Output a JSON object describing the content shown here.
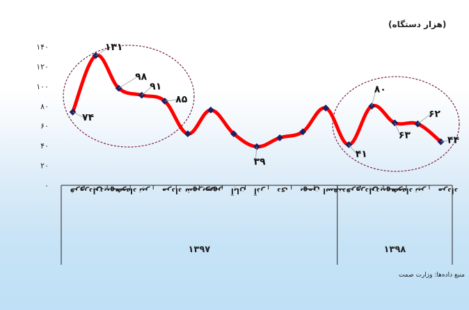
{
  "unit_label": "(هزار دستگاه)",
  "source_label": "منبع داده‌ها: وزارت صمت",
  "colors": {
    "line": "#ff0000",
    "marker": "#1f1f5f",
    "axis": "#222222",
    "circle": "#7a2048"
  },
  "chart_data": {
    "type": "line",
    "title": "",
    "xlabel": "",
    "ylabel": "(هزار دستگاه)",
    "ylim": [
      0,
      140
    ],
    "y_ticks": [
      "۰",
      "۲۰",
      "۴۰",
      "۶۰",
      "۸۰",
      "۱۰۰",
      "۱۲۰",
      "۱۴۰"
    ],
    "categories": [
      "فروردین",
      "اردیبهشت",
      "خرداد",
      "تیر",
      "مرداد",
      "شهریور",
      "مهر",
      "آبان",
      "آذر",
      "دی",
      "بهمن",
      "اسفند",
      "فروردین",
      "اردیبهشت",
      "خرداد",
      "تیر",
      "مرداد"
    ],
    "groups": [
      {
        "label": "۱۳۹۷",
        "count": 12
      },
      {
        "label": "۱۳۹۸",
        "count": 5
      }
    ],
    "series": [
      {
        "values": [
          74,
          131,
          98,
          91,
          85,
          52,
          76,
          52,
          39,
          48,
          54,
          78,
          41,
          80,
          63,
          62,
          44
        ]
      }
    ],
    "data_labels": [
      {
        "index": 0,
        "text": "۷۴"
      },
      {
        "index": 1,
        "text": "۱۳۱"
      },
      {
        "index": 2,
        "text": "۹۸"
      },
      {
        "index": 3,
        "text": "۹۱"
      },
      {
        "index": 4,
        "text": "۸۵"
      },
      {
        "index": 8,
        "text": "۳۹"
      },
      {
        "index": 12,
        "text": "۴۱"
      },
      {
        "index": 13,
        "text": "۸۰"
      },
      {
        "index": 14,
        "text": "۶۳"
      },
      {
        "index": 15,
        "text": "۶۲"
      },
      {
        "index": 16,
        "text": "۴۴"
      }
    ],
    "grid": false,
    "legend": "none"
  }
}
